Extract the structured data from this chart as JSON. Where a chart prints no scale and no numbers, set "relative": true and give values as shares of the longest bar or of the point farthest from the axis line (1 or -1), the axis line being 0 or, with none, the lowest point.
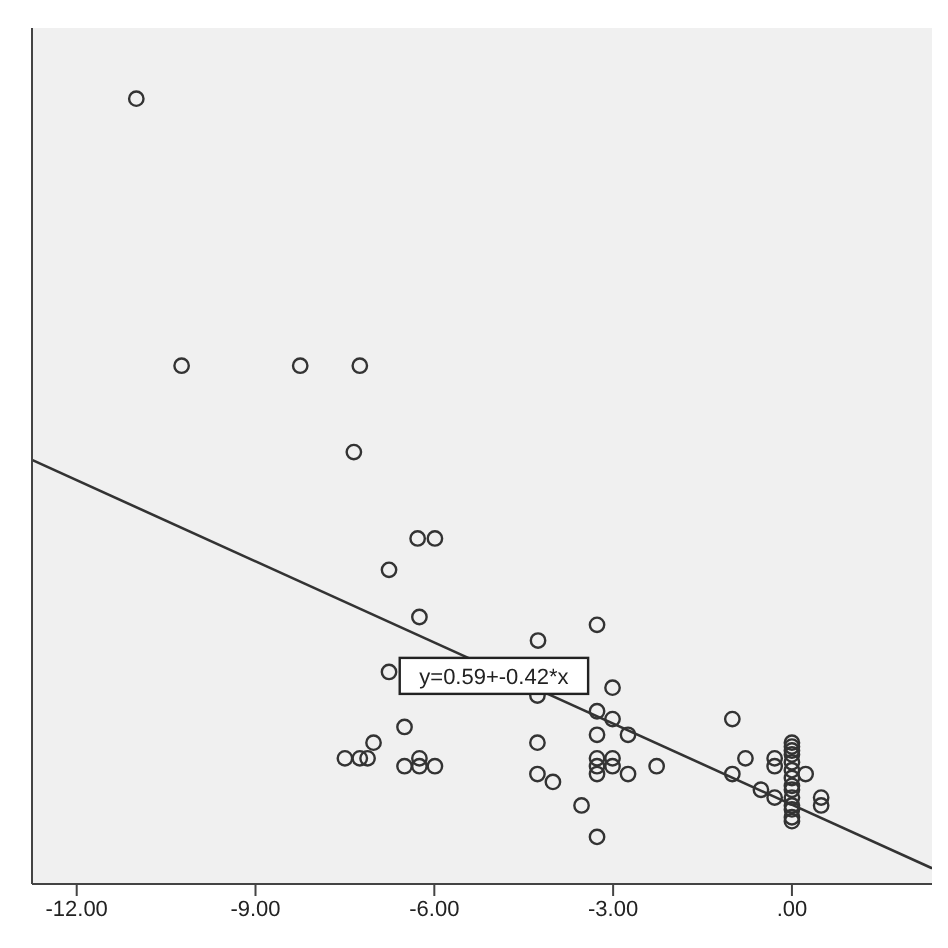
{
  "chart_data": {
    "type": "scatter",
    "relative": true,
    "grid": false,
    "xlim": [
      -12.75,
      2.35
    ],
    "xticks": [
      {
        "value": -12,
        "label": "-12.00"
      },
      {
        "value": -9,
        "label": "-9.00"
      },
      {
        "value": -6,
        "label": "-6.00"
      },
      {
        "value": -3,
        "label": "-3.00"
      },
      {
        "value": 0,
        "label": ".00"
      }
    ],
    "annotations": [
      {
        "text": "y=0.59+-0.42*x",
        "x": -5.0,
        "y": 0.265
      }
    ],
    "series": [
      {
        "marker": "circle",
        "color": "#333333",
        "x": [
          -11.0,
          -10.24,
          -8.25,
          -7.25,
          -7.35,
          -6.28,
          -5.99,
          -6.76,
          -6.25,
          -6.76,
          -6.5,
          -7.02,
          -7.5,
          -7.25,
          -7.12,
          -6.5,
          -6.25,
          -6.25,
          -5.99,
          -3.27,
          -4.26,
          -3.01,
          -4.27,
          -3.27,
          -3.01,
          -2.75,
          -3.27,
          -4.27,
          -3.27,
          -3.01,
          -3.27,
          -3.01,
          -2.27,
          -4.27,
          -4.01,
          -2.75,
          -3.27,
          -3.53,
          -3.27,
          -1.0,
          -0.78,
          -1.0,
          -0.52,
          -0.29,
          -0.29,
          -0.29,
          0,
          0,
          0,
          0,
          0,
          0,
          0,
          0,
          0,
          0,
          0,
          0,
          0,
          0,
          0.23,
          0.49,
          0.49
        ],
        "values": [
          1.0,
          0.66,
          0.66,
          0.66,
          0.55,
          0.44,
          0.44,
          0.4,
          0.34,
          0.27,
          0.2,
          0.18,
          0.16,
          0.16,
          0.16,
          0.15,
          0.16,
          0.15,
          0.15,
          0.33,
          0.31,
          0.25,
          0.24,
          0.22,
          0.21,
          0.19,
          0.19,
          0.18,
          0.16,
          0.16,
          0.15,
          0.15,
          0.15,
          0.14,
          0.13,
          0.14,
          0.14,
          0.1,
          0.06,
          0.21,
          0.16,
          0.14,
          0.12,
          0.11,
          0.16,
          0.15,
          0.18,
          0.175,
          0.17,
          0.165,
          0.155,
          0.145,
          0.135,
          0.125,
          0.12,
          0.11,
          0.1,
          0.095,
          0.085,
          0.08,
          0.14,
          0.11,
          0.1
        ]
      },
      {
        "type": "line",
        "color": "#333333",
        "x": [
          -12.75,
          2.35
        ],
        "values": [
          0.54,
          0.02
        ]
      }
    ]
  }
}
